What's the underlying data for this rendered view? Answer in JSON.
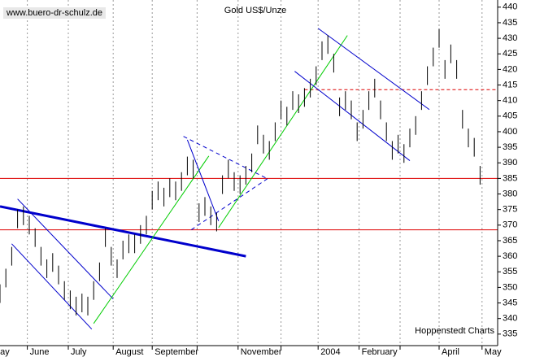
{
  "chart_data": {
    "type": "hilo",
    "title": "Gold US$/Unze",
    "watermark": "www.buero-dr-schulz.de",
    "source": "Hoppenstedt Charts",
    "color": "#000000",
    "x": [
      0,
      3,
      6,
      9,
      12,
      15,
      18,
      21,
      24,
      27,
      30,
      33,
      36,
      39,
      42,
      45,
      48,
      51,
      54,
      57,
      60,
      63,
      66,
      69,
      72,
      75,
      78,
      81,
      84,
      87,
      90,
      93,
      96,
      99,
      102,
      105,
      108,
      111,
      114,
      117,
      120,
      123,
      126,
      129,
      132,
      135,
      138,
      141,
      144,
      147,
      150,
      153,
      156,
      159,
      162,
      165,
      168,
      171,
      174,
      177,
      180,
      183,
      186,
      189,
      192,
      195,
      198,
      201,
      204,
      207,
      210,
      213,
      216,
      219,
      222,
      225,
      228,
      231,
      234,
      237,
      240,
      243,
      246
    ],
    "series": [
      {
        "name": "Low",
        "values": [
          345,
          350,
          357,
          369,
          370,
          367,
          363,
          357,
          353,
          355,
          351,
          346,
          343,
          341,
          342,
          341,
          346,
          352,
          363,
          357,
          353,
          359,
          361,
          361,
          364,
          367,
          375,
          378,
          376,
          379,
          378,
          381,
          386,
          385,
          371,
          373,
          370,
          368,
          380,
          385,
          381,
          380,
          383,
          387,
          396,
          393,
          391,
          397,
          404,
          402,
          407,
          406,
          408,
          411,
          415,
          423,
          425,
          419,
          405,
          407,
          404,
          397,
          401,
          407,
          411,
          404,
          397,
          391,
          393,
          390,
          395,
          399,
          407,
          415,
          421,
          427,
          417,
          422,
          417,
          401,
          395,
          392,
          383
        ]
      },
      {
        "name": "High",
        "values": [
          351,
          356,
          363,
          375,
          376,
          373,
          369,
          363,
          359,
          361,
          357,
          352,
          349,
          347,
          348,
          347,
          352,
          358,
          369,
          363,
          359,
          365,
          367,
          367,
          370,
          373,
          381,
          384,
          382,
          385,
          384,
          387,
          392,
          391,
          377,
          379,
          376,
          374,
          386,
          391,
          387,
          386,
          389,
          393,
          402,
          399,
          397,
          403,
          410,
          408,
          413,
          412,
          414,
          417,
          421,
          429,
          431,
          425,
          411,
          413,
          410,
          403,
          407,
          413,
          417,
          410,
          403,
          397,
          399,
          396,
          401,
          405,
          413,
          421,
          427,
          433,
          423,
          428,
          423,
          407,
          401,
          398,
          389
        ]
      }
    ],
    "xlim": [
      0,
      255
    ],
    "ylim": [
      331.3,
      442.3
    ],
    "yticks": [
      335,
      340,
      345,
      350,
      355,
      360,
      365,
      370,
      375,
      380,
      385,
      390,
      395,
      400,
      405,
      410,
      415,
      420,
      425,
      430,
      435,
      440
    ],
    "xticks": [
      {
        "value": -5,
        "label": "May"
      },
      {
        "value": 14,
        "label": "June"
      },
      {
        "value": 35,
        "label": "July"
      },
      {
        "value": 58,
        "label": "August"
      },
      {
        "value": 78,
        "label": "September"
      },
      {
        "value": 101,
        "label": null
      },
      {
        "value": 122,
        "label": "November"
      },
      {
        "value": 144,
        "label": null
      },
      {
        "value": 163,
        "label": "2004"
      },
      {
        "value": 184,
        "label": "February"
      },
      {
        "value": 205,
        "label": null
      },
      {
        "value": 225,
        "label": "April"
      },
      {
        "value": 247,
        "label": "May"
      }
    ],
    "hlines": [
      {
        "value": 385,
        "color": "#dd0000",
        "from": 0,
        "dashed": false
      },
      {
        "value": 368.5,
        "color": "#dd0000",
        "from": 0,
        "dashed": false
      },
      {
        "value": 413.5,
        "color": "#dd0000",
        "from": 156,
        "dashed": true
      }
    ],
    "trendlines": [
      {
        "x": [
          0,
          126
        ],
        "y": [
          376,
          360
        ],
        "color": "#0000cc",
        "width": 3,
        "dashed": false
      },
      {
        "x": [
          9,
          58
        ],
        "y": [
          378.4,
          346.3
        ],
        "color": "#0000cc",
        "width": 1,
        "dashed": false
      },
      {
        "x": [
          6,
          47
        ],
        "y": [
          364,
          336.6
        ],
        "color": "#0000cc",
        "width": 1,
        "dashed": false
      },
      {
        "x": [
          48,
          107
        ],
        "y": [
          338.4,
          392.2
        ],
        "color": "#00cc00",
        "width": 1,
        "dashed": false
      },
      {
        "x": [
          112,
          178
        ],
        "y": [
          369.2,
          430.9
        ],
        "color": "#00cc00",
        "width": 1,
        "dashed": false
      },
      {
        "x": [
          96,
          112
        ],
        "y": [
          397.4,
          371.3
        ],
        "color": "#0000cc",
        "width": 1,
        "dashed": false
      },
      {
        "x": [
          94,
          137
        ],
        "y": [
          398.5,
          384.9
        ],
        "color": "#0000cc",
        "width": 1,
        "dashed": true
      },
      {
        "x": [
          98,
          137
        ],
        "y": [
          368.5,
          384.9
        ],
        "color": "#0000cc",
        "width": 1,
        "dashed": true
      },
      {
        "x": [
          163,
          220
        ],
        "y": [
          433.2,
          407.1
        ],
        "color": "#0000cc",
        "width": 1,
        "dashed": false
      },
      {
        "x": [
          151,
          210
        ],
        "y": [
          419.4,
          390.7
        ],
        "color": "#0000cc",
        "width": 1,
        "dashed": false
      }
    ]
  }
}
